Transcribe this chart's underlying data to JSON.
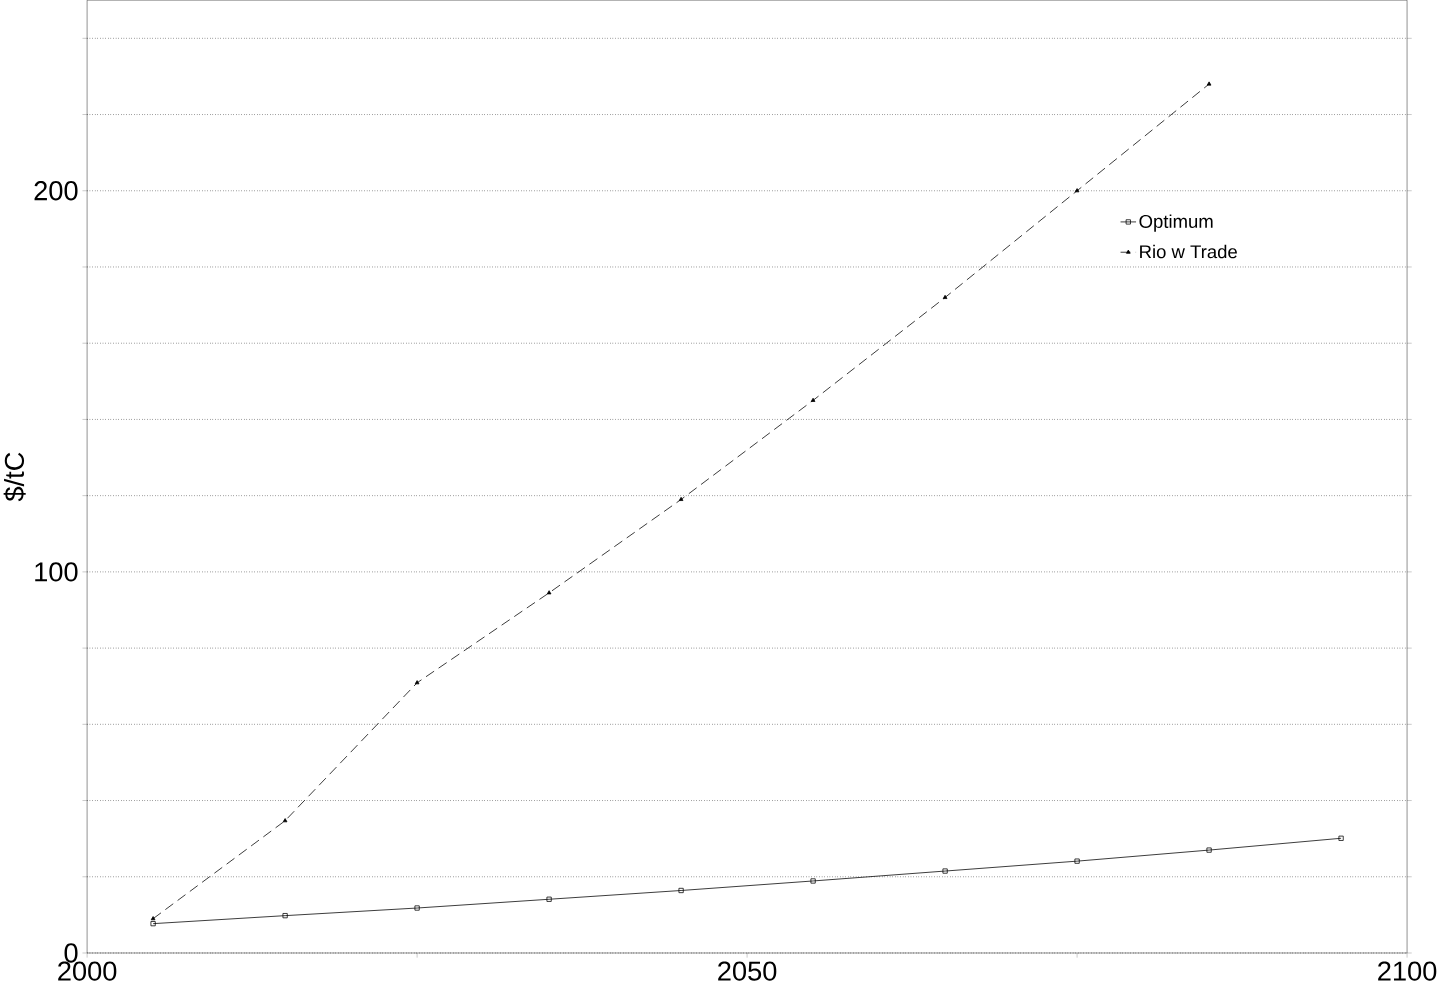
{
  "chart_data": {
    "type": "line",
    "ylabel": "$/tC",
    "x": [
      2005,
      2015,
      2025,
      2035,
      2045,
      2055,
      2065,
      2075,
      2085,
      2095
    ],
    "series": [
      {
        "name": "Optimum",
        "color": "#000000",
        "marker": "square",
        "line_style": "solid",
        "values": [
          7.7,
          9.8,
          11.8,
          14.1,
          16.4,
          18.9,
          21.5,
          24.1,
          27,
          30.1
        ]
      },
      {
        "name": "Rio w Trade",
        "color": "#000000",
        "marker": "triangle",
        "line_style": "dashed",
        "values": [
          9,
          34.7,
          70.9,
          94.5,
          119,
          145,
          172,
          200,
          228,
          null
        ]
      }
    ],
    "xlim": [
      2000,
      2100
    ],
    "ylim": [
      0,
      250
    ],
    "xticks": [
      2000,
      {
        "value": 2025,
        "label": null
      },
      2050,
      {
        "value": 2075,
        "label": null
      },
      2100
    ],
    "yticks": [
      0,
      {
        "value": 20,
        "label": null
      },
      {
        "value": 40,
        "label": null
      },
      {
        "value": 60,
        "label": null
      },
      {
        "value": 80,
        "label": null
      },
      100,
      {
        "value": 120,
        "label": null
      },
      {
        "value": 140,
        "label": null
      },
      {
        "value": 160,
        "label": null
      },
      {
        "value": 180,
        "label": null
      },
      200,
      {
        "value": 220,
        "label": null
      },
      {
        "value": 240,
        "label": null
      }
    ],
    "grid": "y",
    "legend": "right"
  }
}
